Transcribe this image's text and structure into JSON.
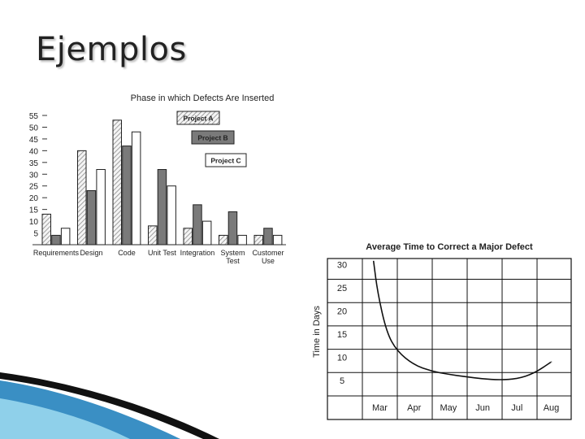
{
  "slide": {
    "title": "Ejemplos"
  },
  "colors": {
    "accent_dark": "#111111",
    "accent_blue": "#3a8fc4",
    "accent_light_blue": "#8fd0ea"
  },
  "chart_data": [
    {
      "type": "bar",
      "title": "Phase in which Defects Are Inserted",
      "categories": [
        "Requirements",
        "Design",
        "Code",
        "Unit Test",
        "Integration",
        [
          "System",
          "Test"
        ],
        [
          "Customer",
          "Use"
        ]
      ],
      "series": [
        {
          "name": "Project A",
          "values": [
            13,
            40,
            53,
            8,
            7,
            4,
            4
          ]
        },
        {
          "name": "Project B",
          "values": [
            4,
            23,
            42,
            32,
            17,
            14,
            7
          ]
        },
        {
          "name": "Project C",
          "values": [
            7,
            32,
            48,
            25,
            10,
            4,
            4
          ]
        }
      ],
      "yticks": [
        5,
        10,
        15,
        20,
        25,
        30,
        35,
        40,
        45,
        50,
        55
      ],
      "ylim": [
        0,
        55
      ],
      "legend_placement": "top-right",
      "grid": false
    },
    {
      "type": "line",
      "title": "Average Time to Correct a Major Defect",
      "ylabel": "Time in Days",
      "xticks": [
        "Mar",
        "Apr",
        "May",
        "Jun",
        "Jul",
        "Aug"
      ],
      "yticks": [
        5,
        10,
        15,
        20,
        25,
        30
      ],
      "ylim": [
        0,
        32.5
      ],
      "grid": true,
      "series": [
        {
          "x": [
            -0.15,
            -0.05,
            0.2,
            0.5,
            1.0,
            1.5,
            2.0,
            2.5,
            3.0,
            3.5,
            4.0,
            4.5,
            5.0
          ],
          "y": [
            31,
            24,
            15.5,
            11.5,
            8.5,
            7.2,
            6.5,
            6.0,
            5.5,
            5.3,
            5.5,
            6.7,
            9.2
          ]
        }
      ]
    }
  ]
}
